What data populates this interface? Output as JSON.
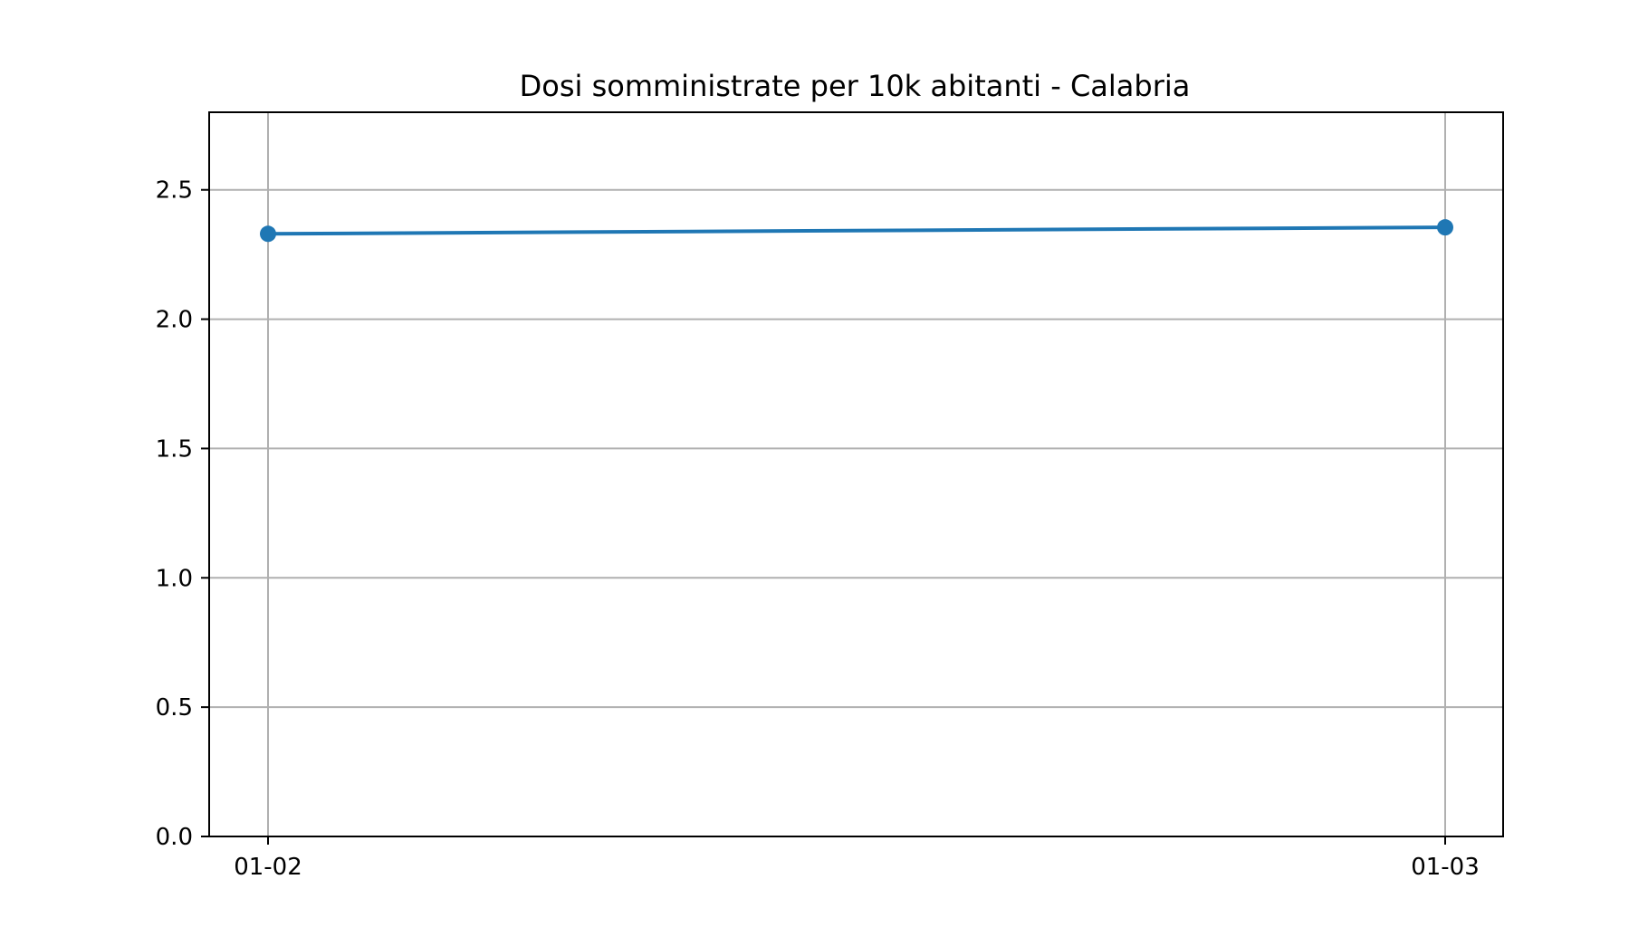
{
  "chart_data": {
    "type": "line",
    "title": "Dosi somministrate per 10k abitanti - Calabria",
    "xlabel": "",
    "ylabel": "",
    "categories": [
      "01-02",
      "01-03"
    ],
    "series": [
      {
        "values": [
          2.33,
          2.355
        ],
        "color": "#1f77b4",
        "marker": "circle"
      }
    ],
    "ylim": [
      0,
      2.8
    ],
    "yticks": [
      0.0,
      0.5,
      1.0,
      1.5,
      2.0,
      2.5
    ],
    "ytick_labels": [
      "0.0",
      "0.5",
      "1.0",
      "1.5",
      "2.0",
      "2.5"
    ],
    "grid": true,
    "grid_color": "#b0b0b0",
    "legend": "none"
  }
}
